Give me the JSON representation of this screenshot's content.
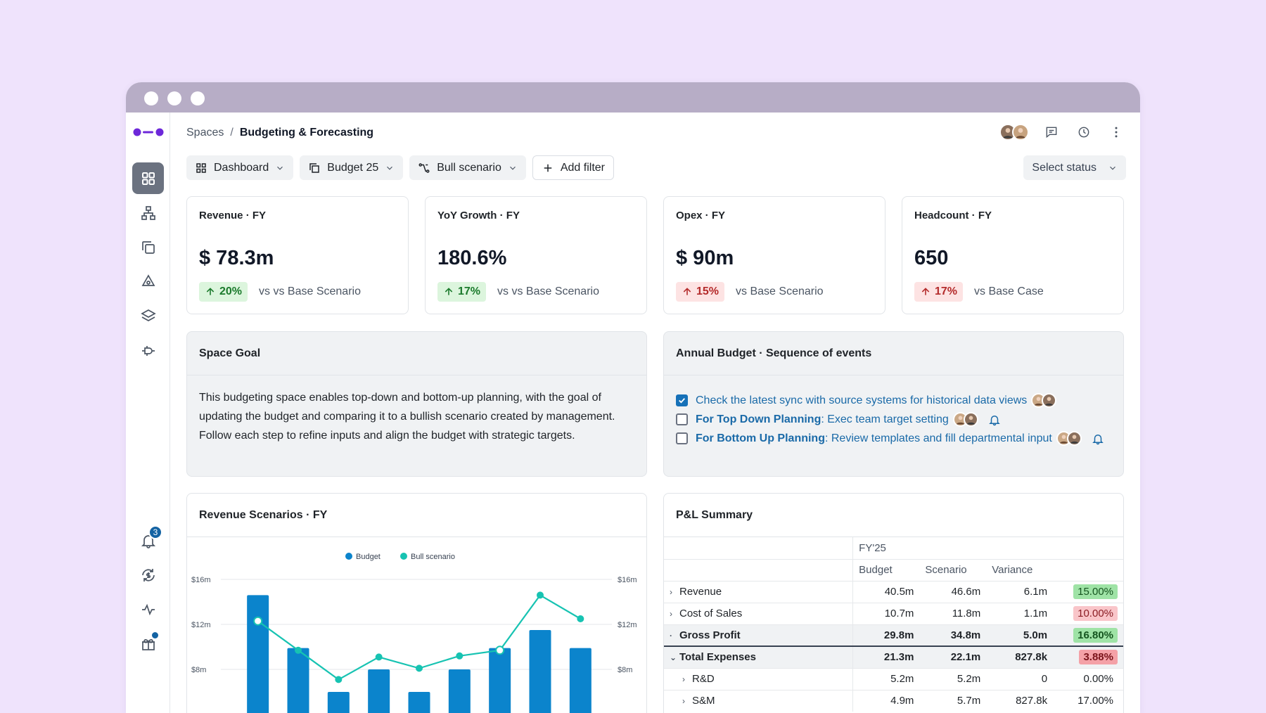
{
  "breadcrumb": {
    "root": "Spaces",
    "separator": "/",
    "current": "Budgeting & Forecasting"
  },
  "filters": {
    "dashboard": "Dashboard",
    "budget": "Budget 25",
    "scenario": "Bull scenario",
    "add_filter": "Add filter",
    "status": "Select status"
  },
  "notifications": {
    "count": "3"
  },
  "kpis": [
    {
      "title": "Revenue · FY",
      "value": "$ 78.3m",
      "delta": "20%",
      "compare": "vs vs Base Scenario",
      "tone": "good"
    },
    {
      "title": "YoY Growth · FY",
      "value": "180.6%",
      "delta": "17%",
      "compare": "vs vs Base Scenario",
      "tone": "good"
    },
    {
      "title": "Opex · FY",
      "value": "$ 90m",
      "delta": "15%",
      "compare": "vs Base Scenario",
      "tone": "bad"
    },
    {
      "title": "Headcount · FY",
      "value": "650",
      "delta": "17%",
      "compare": "vs Base Case",
      "tone": "bad"
    }
  ],
  "space_goal": {
    "title": "Space Goal",
    "text": "This budgeting space enables top-down and bottom-up planning, with the goal of updating the budget and comparing it to a bullish scenario created by management. Follow each step to refine inputs and align the budget with strategic targets."
  },
  "events": {
    "title": "Annual Budget · Sequence of events",
    "items": [
      {
        "prefix": "",
        "text": "Check the latest sync with source systems for historical data views",
        "checked": true,
        "bell": false
      },
      {
        "prefix": "For Top Down Planning",
        "text": ": Exec team target setting",
        "checked": false,
        "bell": true
      },
      {
        "prefix": "For Bottom Up Planning",
        "text": ": Review templates and fill departmental input",
        "checked": false,
        "bell": true
      }
    ]
  },
  "revenue_chart_title": "Revenue Scenarios · FY",
  "chart_data": {
    "type": "bar",
    "title": "Revenue Scenarios · FY",
    "legend": "top-center",
    "yticks": [
      "$16m",
      "$12m",
      "$8m"
    ],
    "ylim": [
      0,
      18
    ],
    "series": [
      {
        "name": "Budget",
        "type": "bar",
        "color": "#0b84cc",
        "values": [
          14.6,
          9.9,
          6.0,
          8.0,
          6.0,
          8.0,
          9.9,
          11.5,
          9.9
        ]
      },
      {
        "name": "Bull scenario",
        "type": "line",
        "color": "#17c3b2",
        "values": [
          12.3,
          9.7,
          7.1,
          9.1,
          8.1,
          9.2,
          9.7,
          14.6,
          12.5
        ]
      }
    ]
  },
  "pl": {
    "title": "P&L Summary",
    "period": "FY'25",
    "columns": [
      "Budget",
      "Scenario",
      "Variance"
    ],
    "rows": [
      {
        "label": "Revenue",
        "expander": "›",
        "budget": "40.5m",
        "scenario": "46.6m",
        "variance": "6.1m",
        "pct": "15.00%",
        "pct_style": "green",
        "bold": false,
        "indent": 0
      },
      {
        "label": "Cost of Sales",
        "expander": "›",
        "budget": "10.7m",
        "scenario": "11.8m",
        "variance": "1.1m",
        "pct": "10.00%",
        "pct_style": "red",
        "bold": false,
        "indent": 0
      },
      {
        "label": "Gross Profit",
        "expander": "·",
        "budget": "29.8m",
        "scenario": "34.8m",
        "variance": "5.0m",
        "pct": "16.80%",
        "pct_style": "green",
        "bold": true,
        "indent": 0
      },
      {
        "label": "Total Expenses",
        "expander": "⌄",
        "budget": "21.3m",
        "scenario": "22.1m",
        "variance": "827.8k",
        "pct": "3.88%",
        "pct_style": "red-strong",
        "bold": true,
        "indent": 0
      },
      {
        "label": "R&D",
        "expander": "›",
        "budget": "5.2m",
        "scenario": "5.2m",
        "variance": "0",
        "pct": "0.00%",
        "pct_style": "none",
        "bold": false,
        "indent": 1
      },
      {
        "label": "S&M",
        "expander": "›",
        "budget": "4.9m",
        "scenario": "5.7m",
        "variance": "827.8k",
        "pct": "17.00%",
        "pct_style": "none",
        "bold": false,
        "indent": 1
      }
    ]
  }
}
